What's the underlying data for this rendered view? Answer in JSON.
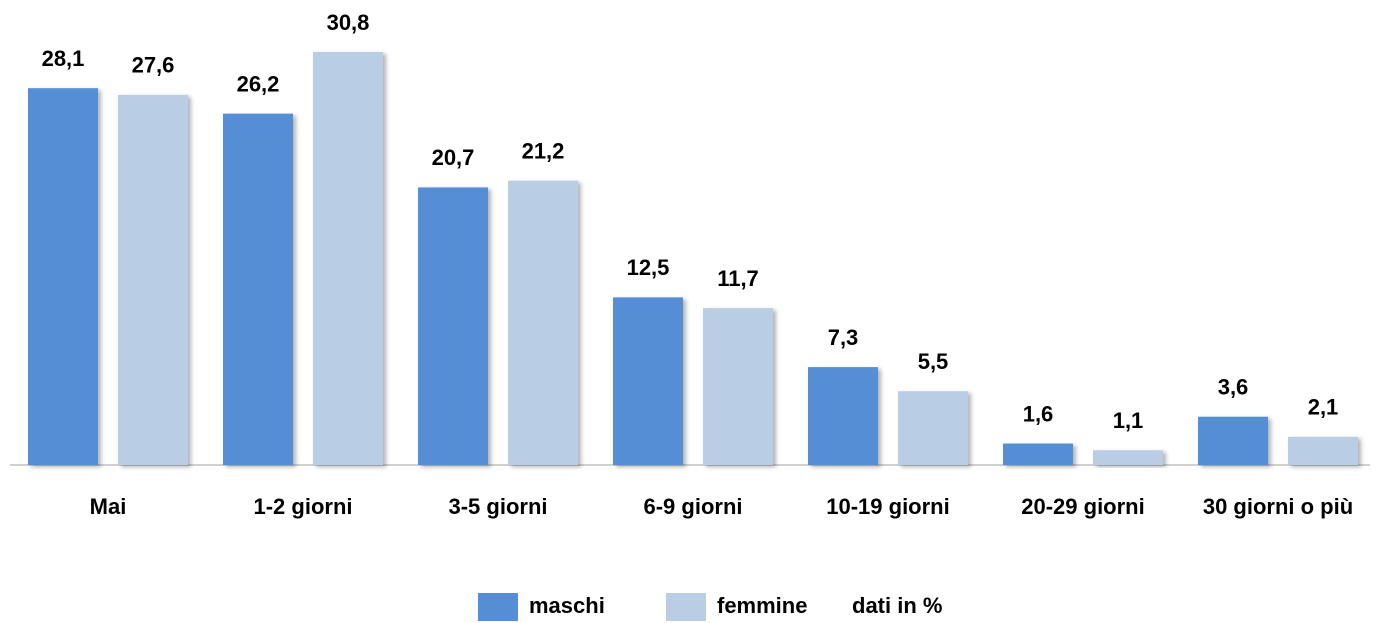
{
  "chart_data": {
    "type": "bar",
    "categories": [
      "Mai",
      "1-2 giorni",
      "3-5 giorni",
      "6-9 giorni",
      "10-19 giorni",
      "20-29 giorni",
      "30 giorni o più"
    ],
    "series": [
      {
        "name": "maschi",
        "color": "#558ed5",
        "values": [
          28.1,
          26.2,
          20.7,
          12.5,
          7.3,
          1.6,
          3.6
        ],
        "value_labels": [
          "28,1",
          "26,2",
          "20,7",
          "12,5",
          "7,3",
          "1,6",
          "3,6"
        ]
      },
      {
        "name": "femmine",
        "color": "#b9cde5",
        "values": [
          27.6,
          30.8,
          21.2,
          11.7,
          5.5,
          1.1,
          2.1
        ],
        "value_labels": [
          "27,6",
          "30,8",
          "21,2",
          "11,7",
          "5,5",
          "1,1",
          "2,1"
        ]
      }
    ],
    "annotation": "dati in %",
    "legend": "bottom"
  }
}
